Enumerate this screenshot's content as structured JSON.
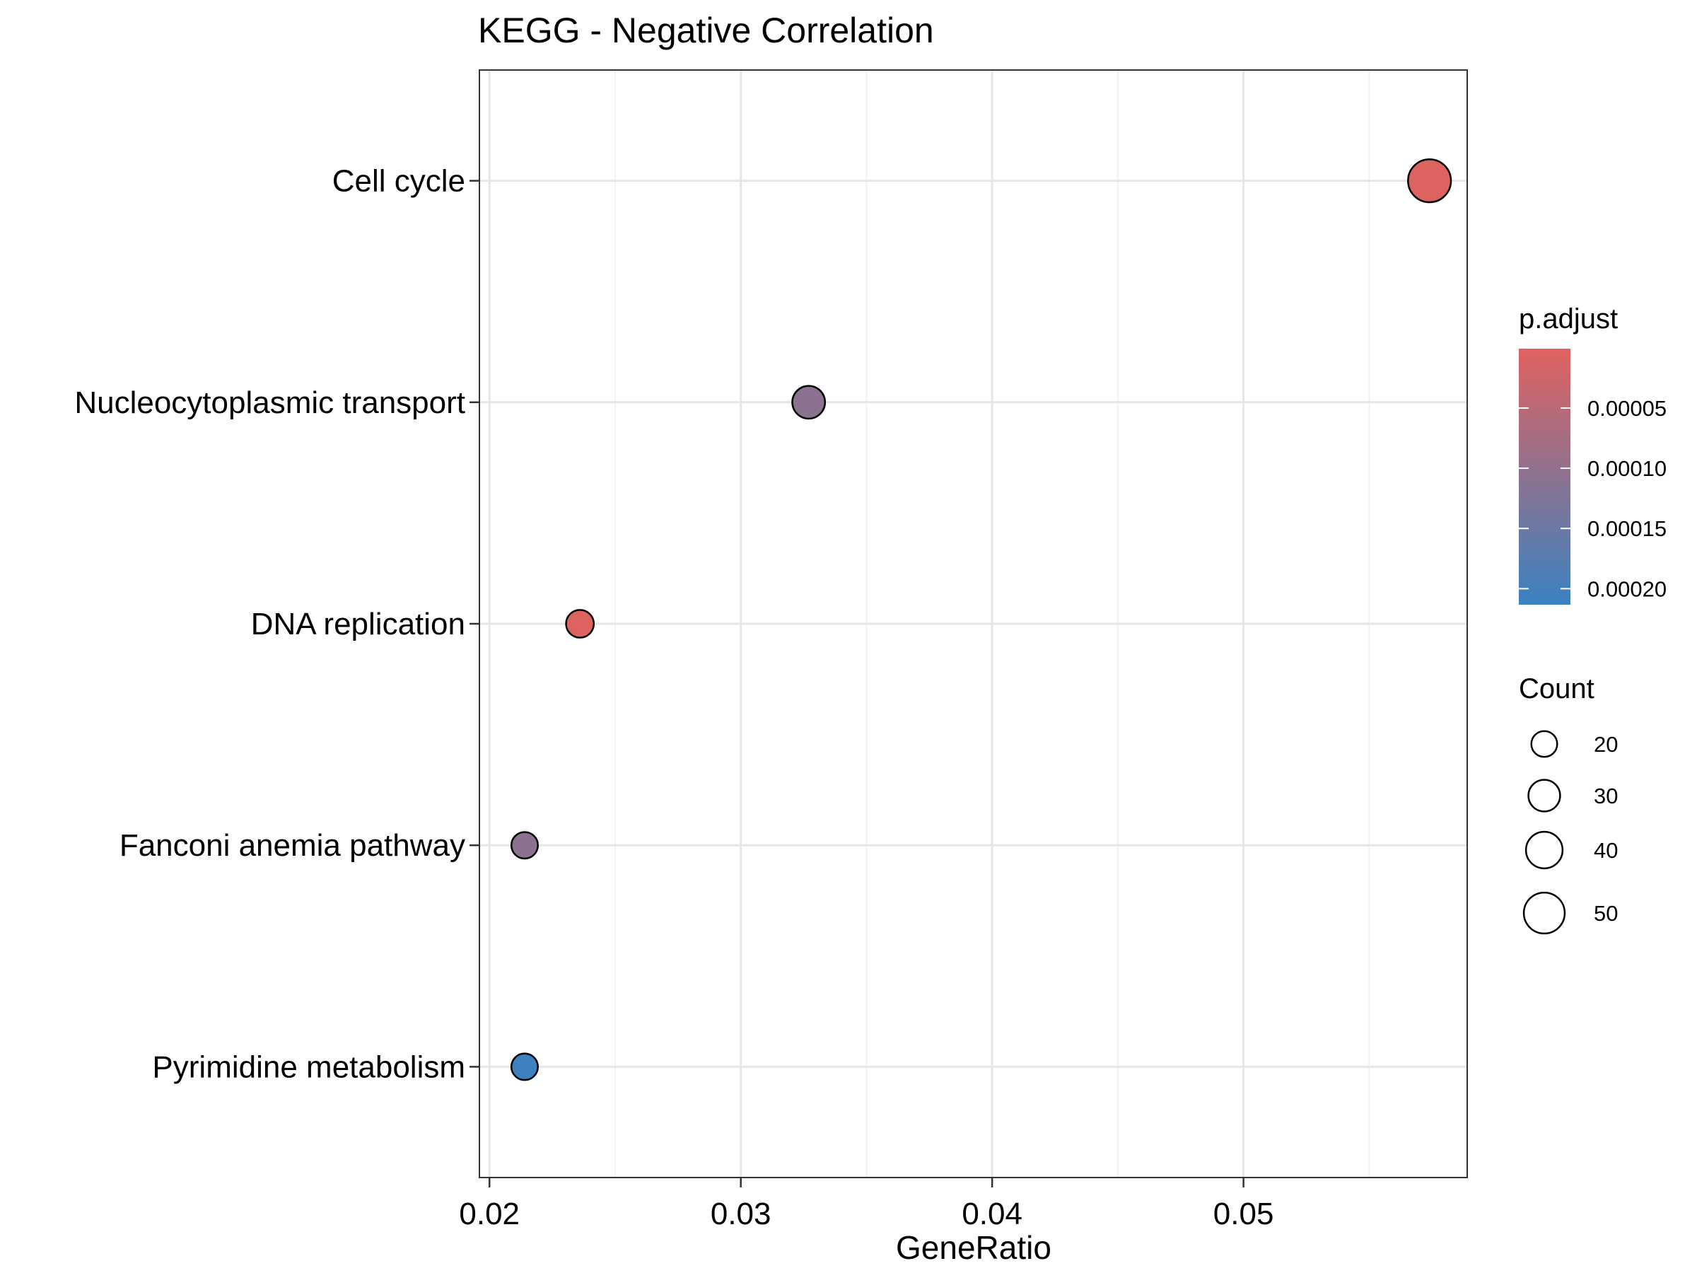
{
  "chart_data": {
    "type": "scatter",
    "title": "KEGG - Negative Correlation",
    "xlabel": "GeneRatio",
    "ylabel": "",
    "xlim": [
      0.0196,
      0.0589
    ],
    "x_ticks": [
      "0.02",
      "0.03",
      "0.04",
      "0.05"
    ],
    "x_tick_values": [
      0.02,
      0.03,
      0.04,
      0.05
    ],
    "categories": [
      "Cell cycle",
      "Nucleocytoplasmic transport",
      "DNA replication",
      "Fanconi anemia pathway",
      "Pyrimidine metabolism"
    ],
    "points": [
      {
        "label": "Cell cycle",
        "gene_ratio": 0.0574,
        "count": 55,
        "p_adjust": 5e-06
      },
      {
        "label": "Nucleocytoplasmic transport",
        "gene_ratio": 0.0327,
        "count": 32,
        "p_adjust": 0.00011
      },
      {
        "label": "DNA replication",
        "gene_ratio": 0.0236,
        "count": 23,
        "p_adjust": 5e-06
      },
      {
        "label": "Fanconi anemia pathway",
        "gene_ratio": 0.0214,
        "count": 21,
        "p_adjust": 0.00011
      },
      {
        "label": "Pyrimidine metabolism",
        "gene_ratio": 0.0214,
        "count": 21,
        "p_adjust": 0.00021
      }
    ],
    "grid": true,
    "color_legend": {
      "title": "p.adjust",
      "range": [
        7e-07,
        0.0002133
      ],
      "ticks": [
        "0.00005",
        "0.00010",
        "0.00015",
        "0.00020"
      ],
      "tick_values": [
        5e-05,
        0.0001,
        0.00015,
        0.0002
      ],
      "low_color": "#e0625f",
      "high_color": "#3a82c1",
      "placement": "right"
    },
    "size_legend": {
      "title": "Count",
      "labels": [
        "20",
        "30",
        "40",
        "50"
      ],
      "values": [
        20,
        30,
        40,
        50
      ],
      "placement": "right"
    }
  }
}
